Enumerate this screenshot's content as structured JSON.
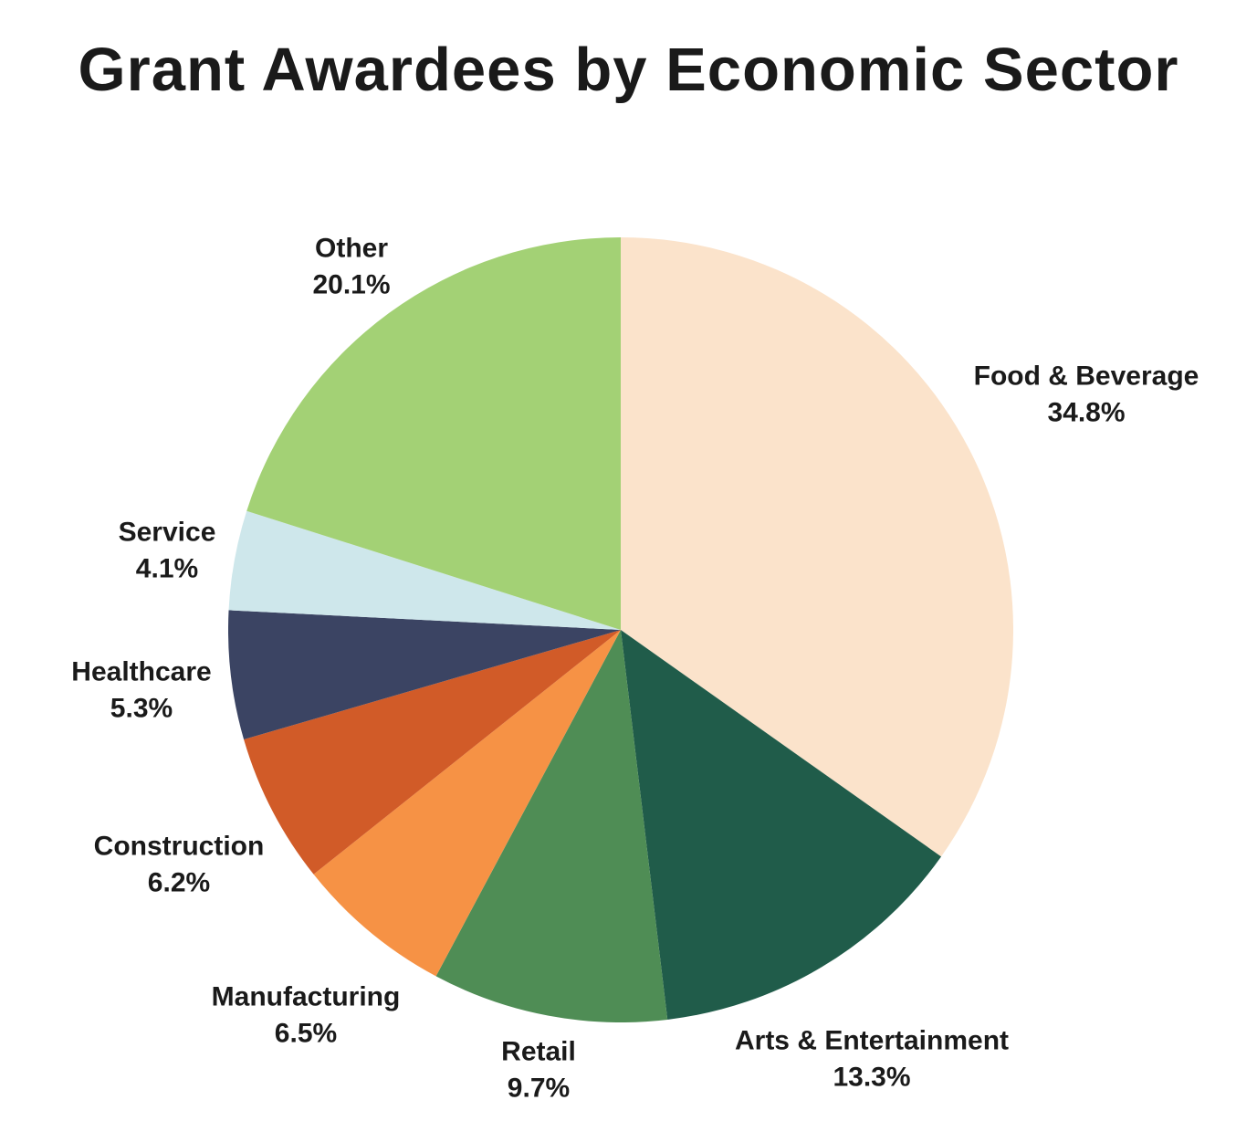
{
  "title": "Grant Awardees by Economic Sector",
  "chart_data": {
    "type": "pie",
    "title": "Grant Awardees by Economic Sector",
    "start_angle_deg": 0,
    "direction": "clockwise",
    "legend_position": "none",
    "labels_outside": true,
    "background_color": "#ffffff",
    "text_color": "#1a1a1a",
    "slices": [
      {
        "label": "Food & Beverage",
        "value": 34.8,
        "display": "34.8%",
        "color": "#FBE3CB"
      },
      {
        "label": "Arts & Entertainment",
        "value": 13.3,
        "display": "13.3%",
        "color": "#205C4A"
      },
      {
        "label": "Retail",
        "value": 9.7,
        "display": "9.7%",
        "color": "#4F8D55"
      },
      {
        "label": "Manufacturing",
        "value": 6.5,
        "display": "6.5%",
        "color": "#F69245"
      },
      {
        "label": "Construction",
        "value": 6.2,
        "display": "6.2%",
        "color": "#D15B28"
      },
      {
        "label": "Healthcare",
        "value": 5.3,
        "display": "5.3%",
        "color": "#3B4463"
      },
      {
        "label": "Service",
        "value": 4.1,
        "display": "4.1%",
        "color": "#CEE7EB"
      },
      {
        "label": "Other",
        "value": 20.1,
        "display": "20.1%",
        "color": "#A3D175"
      }
    ]
  }
}
